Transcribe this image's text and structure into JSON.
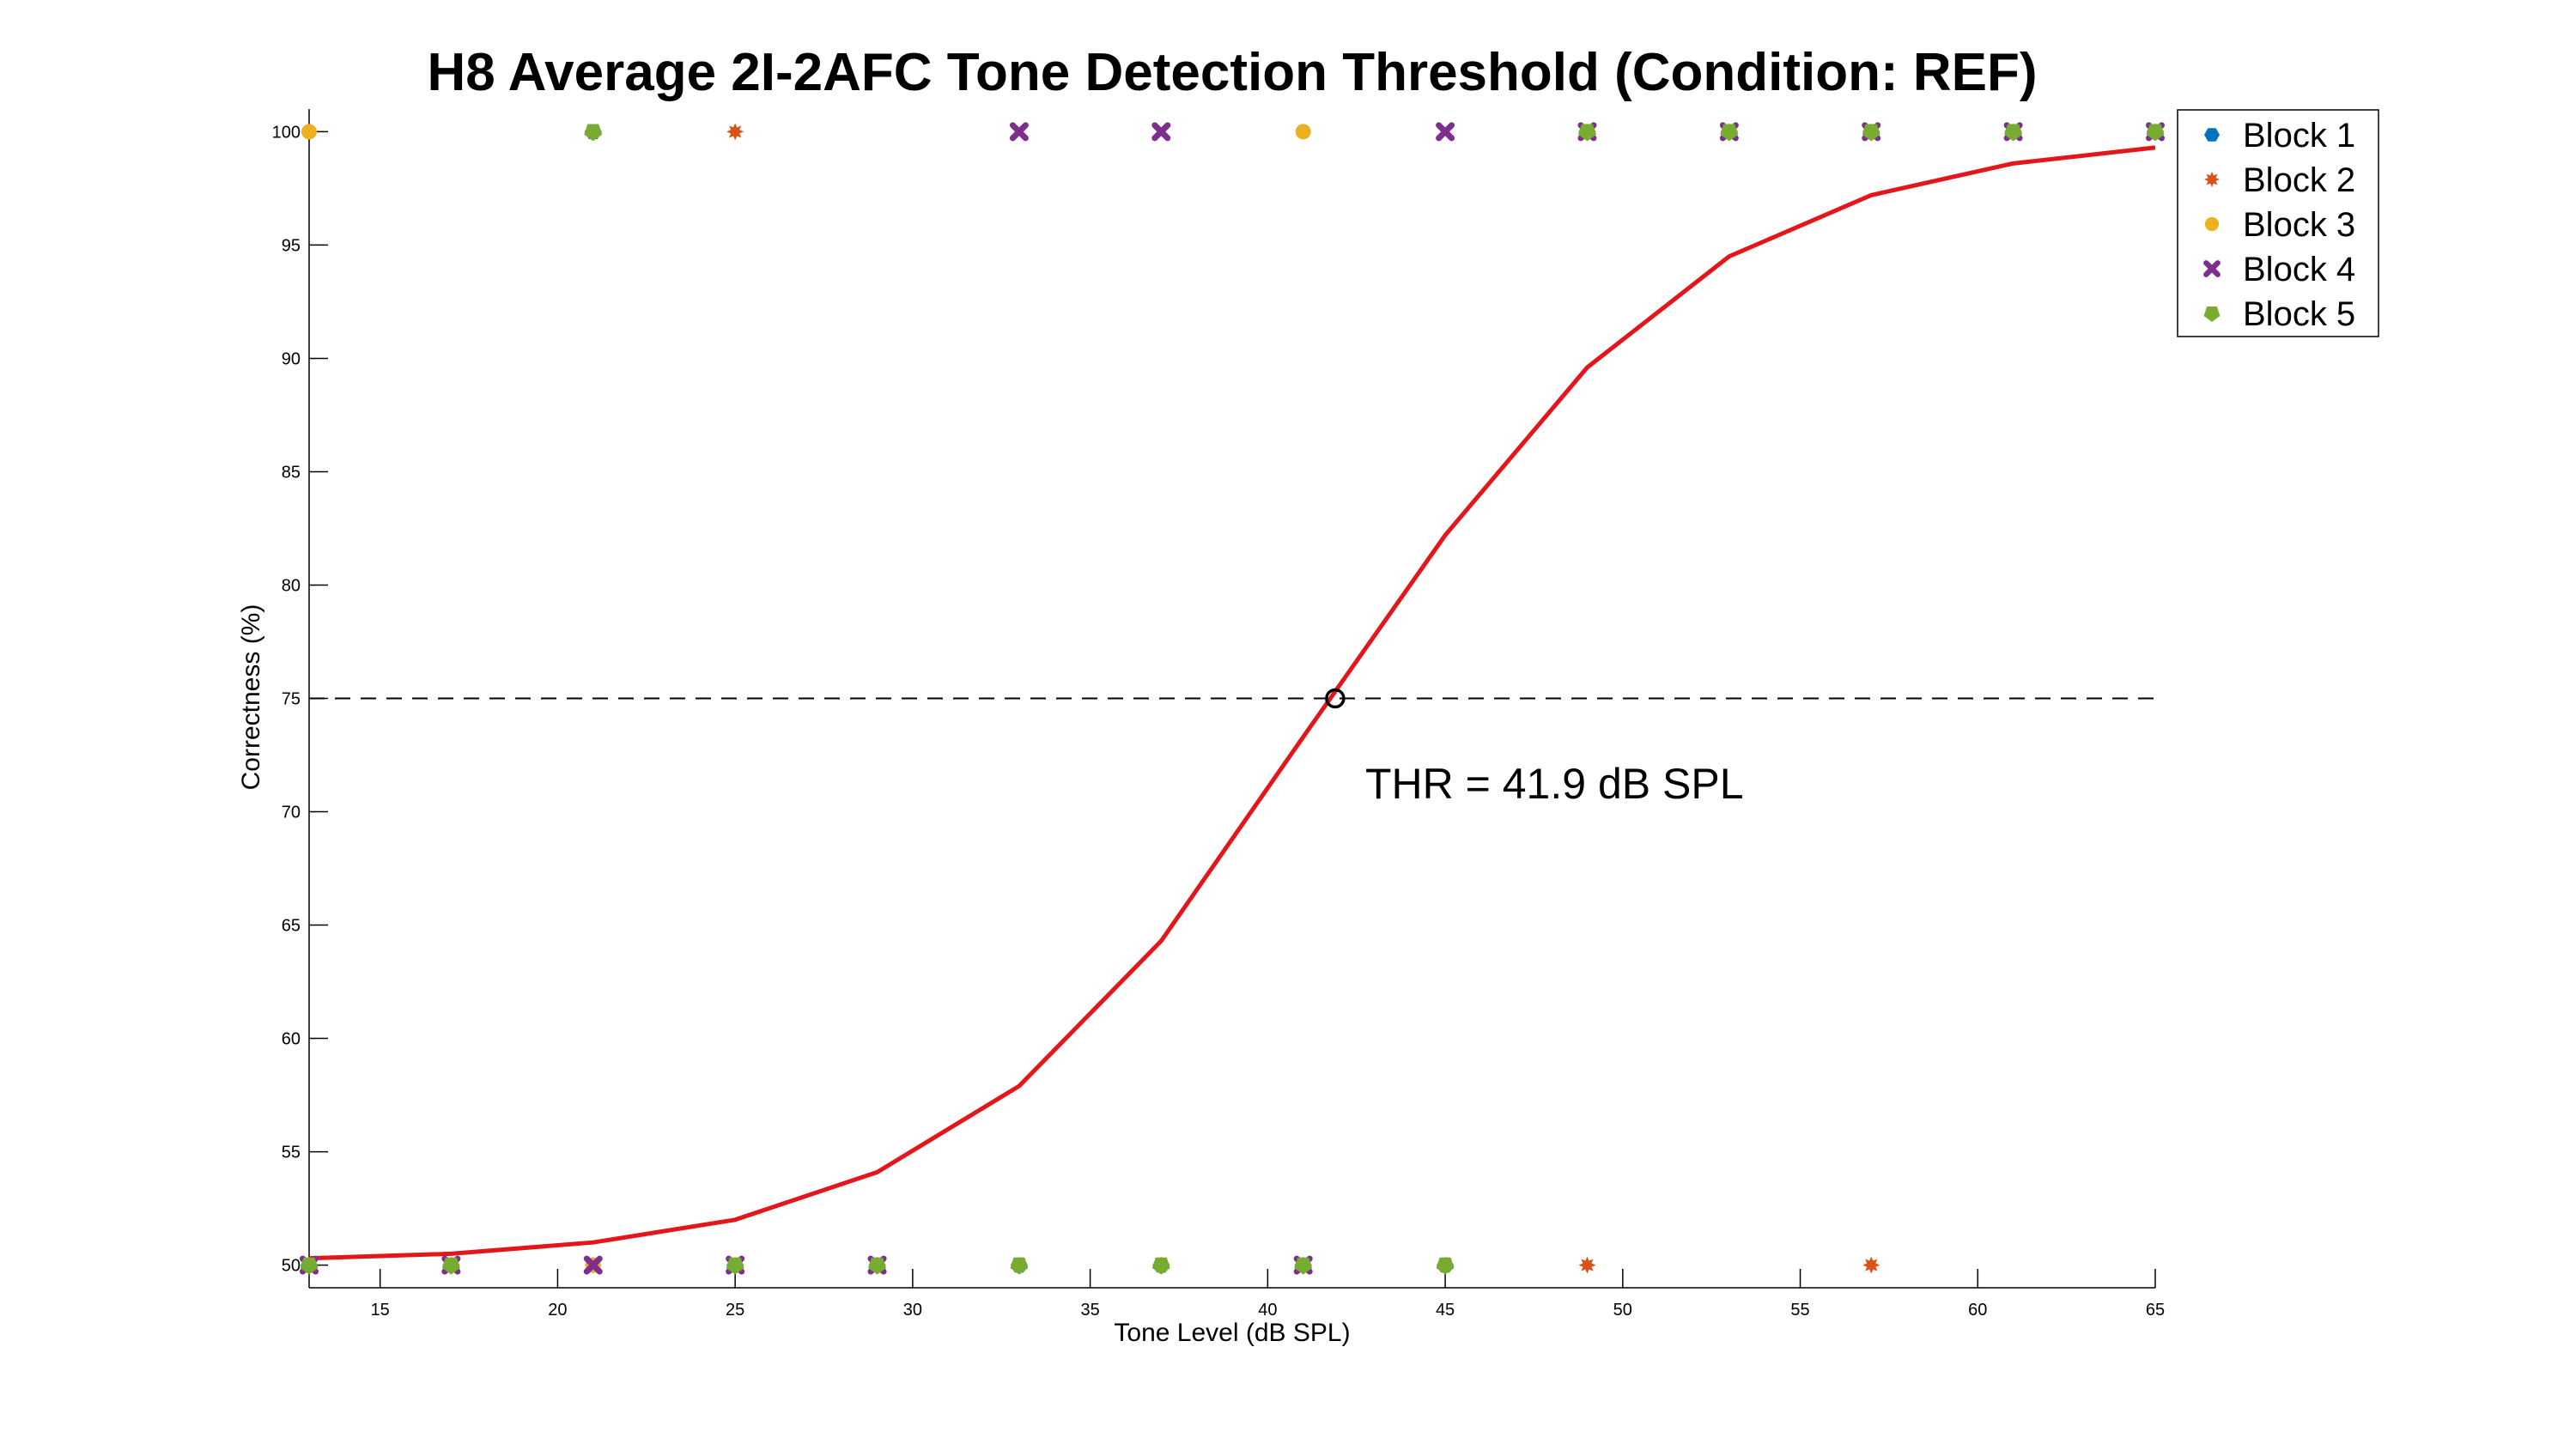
{
  "chart_data": {
    "type": "scatter",
    "title": "H8 Average 2I-2AFC Tone Detection Threshold (Condition: REF)",
    "xlabel": "Tone Level (dB SPL)",
    "ylabel": "Correctness (%)",
    "xlim": [
      13,
      65
    ],
    "ylim": [
      49,
      101
    ],
    "xticks": [
      15,
      20,
      25,
      30,
      35,
      40,
      45,
      50,
      55,
      60,
      65
    ],
    "yticks": [
      50,
      55,
      60,
      65,
      70,
      75,
      80,
      85,
      90,
      95,
      100
    ],
    "legend_position": "top-right",
    "annotation": "THR = 41.9 dB SPL",
    "threshold": {
      "x": 41.9,
      "y": 75
    },
    "reference_line_y": 75,
    "fit_curve": {
      "name": "fit",
      "color": "#e3161b",
      "x": [
        13,
        17,
        21,
        25,
        29,
        33,
        37,
        41,
        45,
        49,
        53,
        57,
        61,
        65
      ],
      "y": [
        50.3,
        50.5,
        51.0,
        52.0,
        54.1,
        57.9,
        64.3,
        73.3,
        82.2,
        89.6,
        94.5,
        97.2,
        98.6,
        99.3
      ]
    },
    "series": [
      {
        "name": "Block 1",
        "color": "#0072bd",
        "marker": "hexagon",
        "points": [
          [
            13,
            50
          ],
          [
            17,
            50
          ],
          [
            21,
            100
          ],
          [
            25,
            50
          ],
          [
            29,
            50
          ],
          [
            33,
            50
          ],
          [
            37,
            50
          ],
          [
            41,
            50
          ],
          [
            45,
            50
          ],
          [
            49,
            100
          ],
          [
            53,
            100
          ],
          [
            57,
            100
          ],
          [
            61,
            100
          ],
          [
            65,
            100
          ]
        ]
      },
      {
        "name": "Block 2",
        "color": "#d95319",
        "marker": "star",
        "points": [
          [
            13,
            50
          ],
          [
            17,
            50
          ],
          [
            21,
            50
          ],
          [
            25,
            100
          ],
          [
            29,
            50
          ],
          [
            33,
            50
          ],
          [
            37,
            50
          ],
          [
            41,
            50
          ],
          [
            45,
            50
          ],
          [
            49,
            50
          ],
          [
            53,
            100
          ],
          [
            57,
            50
          ],
          [
            61,
            100
          ],
          [
            65,
            100
          ]
        ]
      },
      {
        "name": "Block 3",
        "color": "#edb120",
        "marker": "circle",
        "points": [
          [
            13,
            100
          ],
          [
            17,
            50
          ],
          [
            21,
            50
          ],
          [
            25,
            50
          ],
          [
            29,
            50
          ],
          [
            33,
            50
          ],
          [
            37,
            50
          ],
          [
            41,
            100
          ],
          [
            45,
            50
          ],
          [
            49,
            100
          ],
          [
            53,
            100
          ],
          [
            57,
            100
          ],
          [
            61,
            100
          ],
          [
            65,
            100
          ]
        ]
      },
      {
        "name": "Block 4",
        "color": "#7e2f8e",
        "marker": "x",
        "points": [
          [
            13,
            50
          ],
          [
            17,
            50
          ],
          [
            21,
            50
          ],
          [
            25,
            50
          ],
          [
            29,
            50
          ],
          [
            33,
            100
          ],
          [
            37,
            100
          ],
          [
            41,
            50
          ],
          [
            45,
            100
          ],
          [
            49,
            100
          ],
          [
            53,
            100
          ],
          [
            57,
            100
          ],
          [
            61,
            100
          ],
          [
            65,
            100
          ]
        ]
      },
      {
        "name": "Block 5",
        "color": "#77ac30",
        "marker": "triangle",
        "points": [
          [
            13,
            50
          ],
          [
            17,
            50
          ],
          [
            21,
            100
          ],
          [
            25,
            50
          ],
          [
            29,
            50
          ],
          [
            33,
            50
          ],
          [
            37,
            50
          ],
          [
            41,
            50
          ],
          [
            45,
            50
          ],
          [
            49,
            100
          ],
          [
            53,
            100
          ],
          [
            57,
            100
          ],
          [
            61,
            100
          ],
          [
            65,
            100
          ]
        ]
      }
    ]
  }
}
